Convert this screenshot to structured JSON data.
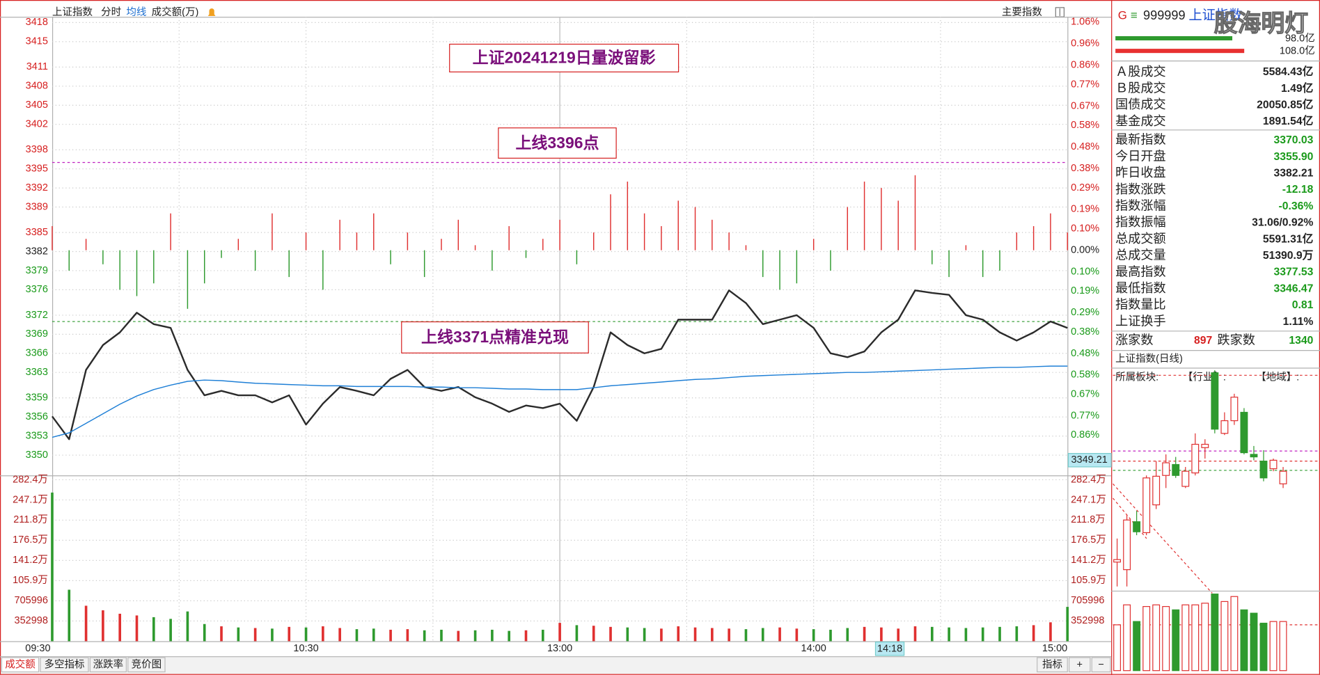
{
  "header": {
    "title": "上证指数",
    "tabs": [
      "分时",
      "均线",
      "成交额(万)"
    ],
    "right": "主要指数"
  },
  "chart_data": [
    {
      "type": "line",
      "x": [
        0,
        4,
        8,
        12,
        16,
        20,
        24,
        28,
        32,
        36,
        40,
        44,
        48,
        52,
        56,
        60,
        64,
        68,
        72,
        76,
        80,
        84,
        88,
        92,
        96,
        100,
        104,
        108,
        112,
        116,
        120,
        124,
        128,
        132,
        136,
        140,
        144,
        148,
        152,
        156,
        160,
        164,
        168,
        172,
        176,
        180,
        184,
        188,
        192,
        196,
        200,
        204,
        208,
        212,
        216,
        220,
        224,
        228,
        232,
        236,
        240
      ],
      "xlim": [
        0,
        240
      ],
      "xticks": [
        {
          "value": 0,
          "label": "09:30"
        },
        {
          "value": 60,
          "label": "10:30"
        },
        {
          "value": 120,
          "label": "13:00"
        },
        {
          "value": 180,
          "label": "14:00"
        },
        {
          "value": 240,
          "label": "15:00"
        }
      ],
      "xminorticks": [
        30,
        90,
        150,
        210
      ],
      "ylim": [
        3348.4,
        3418.9
      ],
      "yticks": [
        3350,
        3353,
        3356,
        3359,
        3363,
        3366,
        3369,
        3372,
        3376,
        3379,
        3382,
        3385,
        3389,
        3392,
        3395,
        3398,
        3402,
        3405,
        3408,
        3411,
        3415,
        3418
      ],
      "y2lim": [
        -1.0,
        1.085
      ],
      "y2ticks": [
        {
          "value": -0.86,
          "label": "0.86%"
        },
        {
          "value": -0.77,
          "label": "0.77%"
        },
        {
          "value": -0.67,
          "label": "0.67%"
        },
        {
          "value": -0.58,
          "label": "0.58%"
        },
        {
          "value": -0.48,
          "label": "0.48%"
        },
        {
          "value": -0.38,
          "label": "0.38%"
        },
        {
          "value": -0.29,
          "label": "0.29%"
        },
        {
          "value": -0.19,
          "label": "0.19%"
        },
        {
          "value": -0.1,
          "label": "0.10%"
        },
        {
          "value": 0,
          "label": "0.00%"
        },
        {
          "value": 0.1,
          "label": "0.10%"
        },
        {
          "value": 0.19,
          "label": "0.19%"
        },
        {
          "value": 0.29,
          "label": "0.29%"
        },
        {
          "value": 0.38,
          "label": "0.38%"
        },
        {
          "value": 0.48,
          "label": "0.48%"
        },
        {
          "value": 0.58,
          "label": "0.58%"
        },
        {
          "value": 0.67,
          "label": "0.67%"
        },
        {
          "value": 0.77,
          "label": "0.77%"
        },
        {
          "value": 0.86,
          "label": "0.86%"
        },
        {
          "value": 0.96,
          "label": "0.96%"
        },
        {
          "value": 1.06,
          "label": "1.06%"
        }
      ],
      "baseline": 3382.21,
      "grid": true,
      "series": [
        {
          "color": "#2b2b2b",
          "values": [
            3356.1,
            3352.5,
            3363.4,
            3367.3,
            3369.3,
            3372.4,
            3370.6,
            3370.0,
            3363.4,
            3359.4,
            3360.1,
            3359.4,
            3359.4,
            3358.3,
            3359.4,
            3354.8,
            3358.1,
            3360.7,
            3360.1,
            3359.4,
            3362.0,
            3363.4,
            3360.7,
            3360.1,
            3360.7,
            3359.1,
            3358.1,
            3356.8,
            3357.8,
            3357.4,
            3358.1,
            3355.4,
            3360.7,
            3369.3,
            3367.3,
            3366.0,
            3366.7,
            3371.3,
            3371.3,
            3371.3,
            3375.9,
            3373.9,
            3370.6,
            3371.3,
            3372.0,
            3370.0,
            3366.0,
            3365.4,
            3366.3,
            3369.3,
            3371.3,
            3375.9,
            3375.5,
            3375.2,
            3372.0,
            3371.3,
            3369.3,
            3368.0,
            3369.3,
            3371.0,
            3370.0
          ]
        },
        {
          "color": "#1e7fd6",
          "values": [
            3352.8,
            3353.5,
            3355.0,
            3356.5,
            3358.0,
            3359.3,
            3360.3,
            3361.0,
            3361.6,
            3361.8,
            3361.7,
            3361.5,
            3361.3,
            3361.2,
            3361.1,
            3361.0,
            3360.9,
            3360.9,
            3360.8,
            3360.8,
            3360.8,
            3360.8,
            3360.7,
            3360.7,
            3360.6,
            3360.6,
            3360.5,
            3360.4,
            3360.4,
            3360.3,
            3360.3,
            3360.3,
            3360.6,
            3360.9,
            3361.1,
            3361.3,
            3361.5,
            3361.7,
            3361.9,
            3362.0,
            3362.2,
            3362.4,
            3362.5,
            3362.6,
            3362.7,
            3362.8,
            3362.9,
            3363.0,
            3363.0,
            3363.1,
            3363.2,
            3363.3,
            3363.4,
            3363.5,
            3363.6,
            3363.7,
            3363.8,
            3363.8,
            3363.9,
            3364.0,
            3364.0
          ]
        }
      ],
      "bars": {
        "up_color": "#e03030",
        "down_color": "#2e9a2e",
        "values": [
          3386,
          3379,
          3384,
          3380,
          3376,
          3375,
          3377,
          3388,
          3373,
          3377,
          3381,
          3384,
          3379,
          3388,
          3378,
          3385,
          3376,
          3387,
          3385,
          3388,
          3380,
          3385,
          3378,
          3384,
          3387,
          3383,
          3379,
          3386,
          3381,
          3384,
          3387,
          3380,
          3385,
          3391,
          3393,
          3388,
          3386,
          3390,
          3389,
          3387,
          3385,
          3383,
          3378,
          3376,
          3377,
          3384,
          3379,
          3389,
          3393,
          3392,
          3390,
          3394,
          3380,
          3378,
          3383,
          3378,
          3379,
          3385,
          3386,
          3388,
          3385
        ]
      },
      "hlines": [
        {
          "value": 3396,
          "color": "#c020c0"
        },
        {
          "value": 3371,
          "color": "#2e9a2e"
        }
      ],
      "annotations": [
        "上证20241219日量波留影",
        "上线3396点",
        "上线3371点精准兑现"
      ],
      "cursor": {
        "x_label": "14:18",
        "y_value": 3349.21
      }
    },
    {
      "type": "bar",
      "x": [
        0,
        4,
        8,
        12,
        16,
        20,
        24,
        28,
        32,
        36,
        40,
        44,
        48,
        52,
        56,
        60,
        64,
        68,
        72,
        76,
        80,
        84,
        88,
        92,
        96,
        100,
        104,
        108,
        112,
        116,
        120,
        124,
        128,
        132,
        136,
        140,
        144,
        148,
        152,
        156,
        160,
        164,
        168,
        172,
        176,
        180,
        184,
        188,
        192,
        196,
        200,
        204,
        208,
        212,
        216,
        220,
        224,
        228,
        232,
        236,
        240
      ],
      "xlim": [
        0,
        240
      ],
      "ylim": [
        0,
        2900000
      ],
      "yticks": [
        352998,
        705996,
        {
          "value": 1058994,
          "label": "105.9万"
        },
        {
          "value": 1411992,
          "label": "141.2万"
        },
        {
          "value": 1764990,
          "label": "176.5万"
        },
        {
          "value": 2117988,
          "label": "211.8万"
        },
        {
          "value": 2470986,
          "label": "247.1万"
        },
        {
          "value": 2823984,
          "label": "282.4万"
        }
      ],
      "up_color": "#e03030",
      "down_color": "#2e9a2e",
      "values": [
        2600000,
        900000,
        620000,
        540000,
        480000,
        450000,
        420000,
        390000,
        520000,
        300000,
        260000,
        240000,
        230000,
        220000,
        250000,
        240000,
        260000,
        230000,
        210000,
        220000,
        200000,
        210000,
        190000,
        200000,
        180000,
        190000,
        200000,
        180000,
        190000,
        200000,
        320000,
        280000,
        270000,
        250000,
        240000,
        230000,
        220000,
        260000,
        240000,
        230000,
        220000,
        210000,
        230000,
        240000,
        220000,
        210000,
        200000,
        230000,
        250000,
        240000,
        220000,
        260000,
        250000,
        240000,
        230000,
        240000,
        250000,
        260000,
        280000,
        330000,
        600000
      ]
    },
    {
      "type": "candlestick",
      "title": "上证指数(日线)",
      "ylim": [
        3150,
        3500
      ],
      "up_color": "#e03030",
      "down_color": "#2e9a2e",
      "open": [
        3193.6,
        3181.3,
        3258.9,
        3241.2,
        3286.2,
        3333.8,
        3351.5,
        3316.1,
        3337.9,
        3378.8,
        3500.0,
        3401.9,
        3422.4,
        3436.0,
        3367.9,
        3357.0,
        3344.7,
        3320.2
      ],
      "close": [
        3197.6,
        3261.7,
        3242.6,
        3329.8,
        3332.5,
        3354.3,
        3333.8,
        3340.6,
        3384.2,
        3384.2,
        3408.7,
        3422.4,
        3460.5,
        3370.6,
        3363.8,
        3329.8,
        3358.4,
        3340.6
      ],
      "high": [
        3231.7,
        3269.8,
        3276.6,
        3333.8,
        3357.0,
        3367.9,
        3363.8,
        3347.5,
        3401.9,
        3392.4,
        3504.1,
        3436.0,
        3466.0,
        3442.8,
        3381.5,
        3374.7,
        3361.1,
        3347.5
      ],
      "low": [
        3154.1,
        3154.1,
        3237.1,
        3237.1,
        3279.4,
        3313.4,
        3329.8,
        3313.4,
        3333.8,
        3361.1,
        3401.9,
        3399.2,
        3415.6,
        3367.9,
        3358.4,
        3324.3,
        3340.6,
        3313.4
      ],
      "hlines": [
        {
          "value": 3495.9,
          "color": "#e03030"
        },
        {
          "value": 3373.3,
          "color": "#c020c0"
        },
        {
          "value": 3357.0,
          "color": "#e03030"
        },
        {
          "value": 3342.0,
          "color": "#2e9a2e"
        }
      ],
      "volume": {
        "ylim": [
          0,
          95
        ],
        "values": [
          55,
          79,
          59,
          77,
          79,
          77,
          73,
          79,
          79,
          81,
          92,
          83,
          89,
          73,
          69,
          57,
          59,
          59
        ],
        "hline": {
          "value": 55,
          "color": "#e03030"
        }
      }
    }
  ],
  "side_panel": {
    "marks": [
      "G",
      "≡"
    ],
    "code": "999999",
    "name": "上证指数",
    "watermark": "股海明灯",
    "flows": {
      "values": [
        98.0,
        108.0
      ],
      "value_labels": [
        "98.0亿",
        "108.0亿"
      ],
      "colors": [
        "#2e9a2e",
        "#e83030"
      ]
    },
    "turnover": [
      [
        "Ａ股成交",
        "5584.43亿"
      ],
      [
        "Ｂ股成交",
        "1.49亿"
      ],
      [
        "国债成交",
        "20050.85亿"
      ],
      [
        "基金成交",
        "1891.54亿"
      ]
    ],
    "quotes": [
      {
        "label": "最新指数",
        "value": "3370.03",
        "color": "#1a9a1a"
      },
      {
        "label": "今日开盘",
        "value": "3355.90",
        "color": "#1a9a1a"
      },
      {
        "label": "昨日收盘",
        "value": "3382.21",
        "color": "#222222"
      },
      {
        "label": "指数涨跌",
        "value": "-12.18",
        "color": "#1a9a1a"
      },
      {
        "label": "指数涨幅",
        "value": "-0.36%",
        "color": "#1a9a1a"
      },
      {
        "label": "指数振幅",
        "value": "31.06/0.92%",
        "color": "#222222"
      },
      {
        "label": "总成交额",
        "value": "5591.31亿",
        "color": "#222222"
      },
      {
        "label": "总成交量",
        "value": "51390.9万",
        "color": "#222222"
      },
      {
        "label": "最高指数",
        "value": "3377.53",
        "color": "#1a9a1a"
      },
      {
        "label": "最低指数",
        "value": "3346.47",
        "color": "#1a9a1a"
      },
      {
        "label": "指数量比",
        "value": "0.81",
        "color": "#1a9a1a"
      },
      {
        "label": "上证换手",
        "value": "1.11%",
        "color": "#222222"
      }
    ],
    "breadth": {
      "up_label": "涨家数",
      "up": "897",
      "down_label": "跌家数",
      "down": "1340"
    },
    "sector": {
      "label": "所属板块:",
      "industry": "【行业】:",
      "region": "【地域】:"
    }
  },
  "footer": {
    "tabs": [
      "成交额",
      "多空指标",
      "涨跌率",
      "竞价图"
    ],
    "right": [
      "指标",
      "+",
      "−"
    ]
  }
}
